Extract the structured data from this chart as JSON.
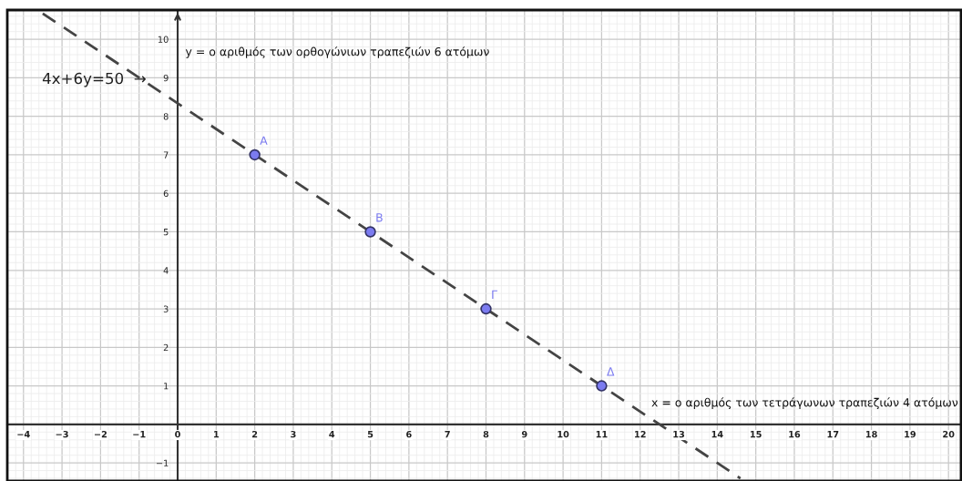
{
  "chart_data": {
    "type": "line",
    "xlabel": "x = ο αριθμός των τετράγωνων τραπεζιών 4 ατόμων",
    "ylabel": "y = ο αριθμός των ορθογώνιων τραπεζιών 6 ατόμων",
    "series": [
      {
        "type": "line",
        "x": [
          -3.5,
          14.6
        ],
        "values": [
          10.67,
          -1.4
        ],
        "color": "#444444",
        "line_style": "dashed",
        "marker": "none"
      },
      {
        "type": "scatter",
        "x": [
          2,
          5,
          8,
          11
        ],
        "values": [
          7,
          5,
          3,
          1
        ],
        "color": "#7b7bf0",
        "marker": "circle"
      }
    ],
    "annotations": [
      "4x+6y=50  →",
      {
        "text": "A",
        "x": 2,
        "y": 7
      },
      {
        "text": "B",
        "x": 5,
        "y": 5
      },
      {
        "text": "Γ",
        "x": 8,
        "y": 3
      },
      {
        "text": "Δ",
        "x": 11,
        "y": 1
      }
    ],
    "xlim": [
      -4.42,
      20.35
    ],
    "ylim": [
      -1.47,
      10.76
    ],
    "xticks": [
      {
        "value": -4,
        "label": "−4"
      },
      {
        "value": -3,
        "label": "−3"
      },
      {
        "value": -2,
        "label": "−2"
      },
      {
        "value": -1,
        "label": "−1"
      },
      0,
      1,
      2,
      3,
      4,
      5,
      6,
      7,
      8,
      9,
      10,
      11,
      12,
      13,
      14,
      15,
      16,
      17,
      18,
      19,
      20
    ],
    "yticks": [
      {
        "value": -1,
        "label": "−1"
      },
      1,
      2,
      3,
      4,
      5,
      6,
      7,
      8,
      9,
      10
    ],
    "grid": true
  }
}
